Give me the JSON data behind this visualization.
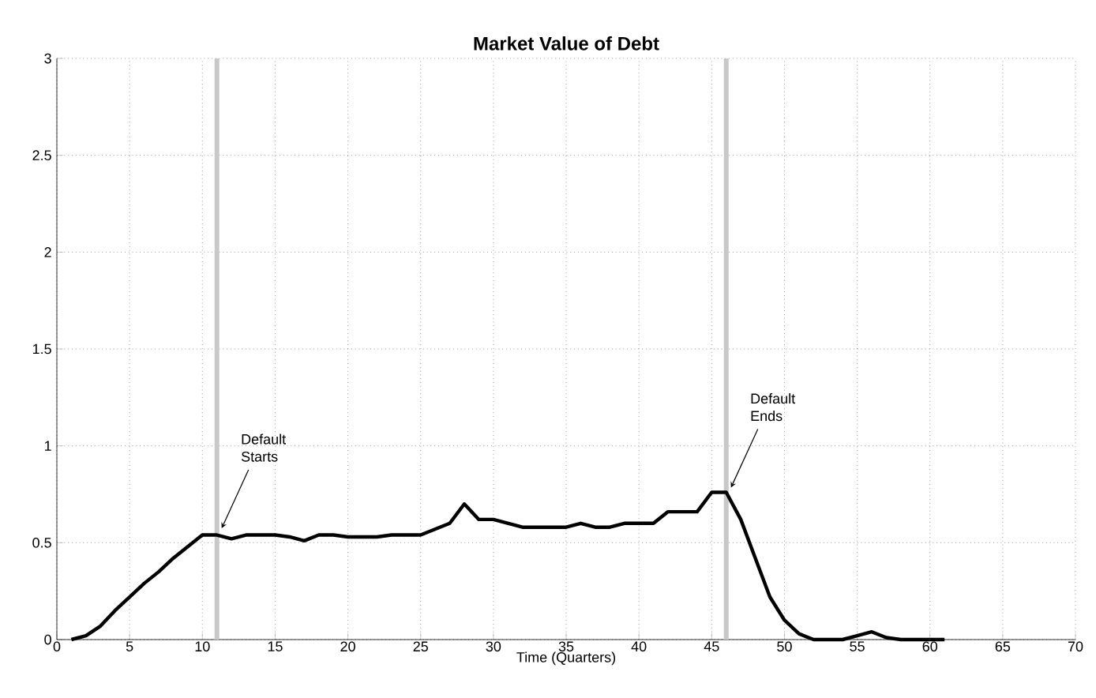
{
  "chart_data": {
    "type": "line",
    "title": "Market Value of Debt",
    "xlabel": "Time (Quarters)",
    "xlim": [
      0,
      70
    ],
    "ylim": [
      0,
      3
    ],
    "xticks": [
      0,
      5,
      10,
      15,
      20,
      25,
      30,
      35,
      40,
      45,
      50,
      55,
      60,
      65,
      70
    ],
    "yticks": [
      0,
      0.5,
      1,
      1.5,
      2,
      2.5,
      3
    ],
    "grid": true,
    "line_style": "solid",
    "marker": "none",
    "x": [
      1,
      2,
      3,
      4,
      5,
      6,
      7,
      8,
      9,
      10,
      11,
      12,
      13,
      14,
      15,
      16,
      17,
      18,
      19,
      20,
      21,
      22,
      23,
      24,
      25,
      26,
      27,
      28,
      29,
      30,
      31,
      32,
      33,
      34,
      35,
      36,
      37,
      38,
      39,
      40,
      41,
      42,
      43,
      44,
      45,
      46,
      47,
      48,
      49,
      50,
      51,
      52,
      53,
      54,
      55,
      56,
      57,
      58,
      59,
      60,
      61
    ],
    "series": [
      {
        "color": "#000000",
        "values": [
          0,
          0.02,
          0.07,
          0.15,
          0.22,
          0.29,
          0.35,
          0.42,
          0.48,
          0.54,
          0.54,
          0.52,
          0.54,
          0.54,
          0.54,
          0.53,
          0.51,
          0.54,
          0.54,
          0.53,
          0.53,
          0.53,
          0.54,
          0.54,
          0.54,
          0.57,
          0.6,
          0.7,
          0.62,
          0.62,
          0.6,
          0.58,
          0.58,
          0.58,
          0.58,
          0.6,
          0.58,
          0.58,
          0.6,
          0.6,
          0.6,
          0.66,
          0.66,
          0.66,
          0.76,
          0.76,
          0.62,
          0.42,
          0.22,
          0.1,
          0.03,
          0,
          0,
          0,
          0.02,
          0.04,
          0.01,
          0,
          0,
          0,
          0
        ]
      }
    ],
    "ref_lines": [
      {
        "axis": "x",
        "value": 11,
        "color": "#c8c8c8"
      },
      {
        "axis": "x",
        "value": 46,
        "color": "#c8c8c8"
      }
    ],
    "annotations": [
      {
        "text": "Default Starts",
        "x": 11,
        "y": 0.55
      },
      {
        "text": "Default Ends",
        "x": 46,
        "y": 0.76
      }
    ]
  }
}
